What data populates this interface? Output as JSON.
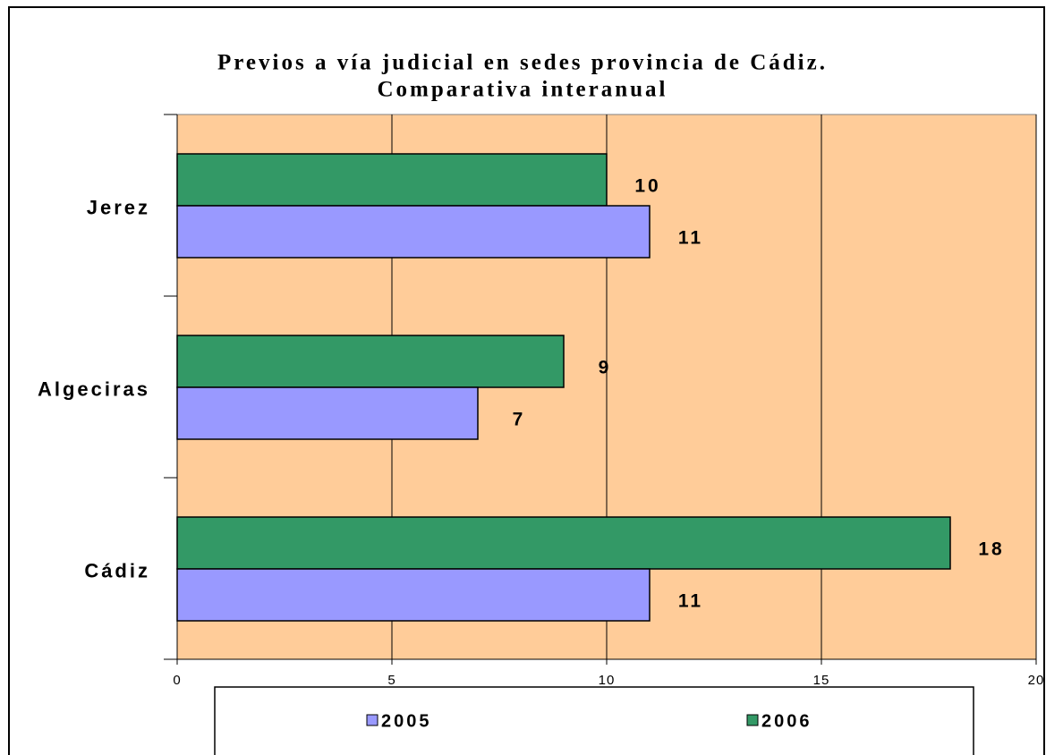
{
  "chart_data": {
    "type": "barh",
    "title": [
      "Previos a vía judicial en sedes provincia de Cádiz.",
      "Comparativa interanual"
    ],
    "categories": [
      "Cádiz",
      "Algeciras",
      "Jerez"
    ],
    "series": [
      {
        "name": "2005",
        "color": "#9999ff",
        "values": [
          11,
          7,
          11
        ]
      },
      {
        "name": "2006",
        "color": "#339966",
        "values": [
          18,
          9,
          10
        ]
      }
    ],
    "xlim": [
      0,
      20
    ],
    "xticks": [
      0,
      5,
      10,
      15,
      20
    ],
    "grid": true,
    "background": "#ffcc99",
    "legend": "bottom"
  }
}
